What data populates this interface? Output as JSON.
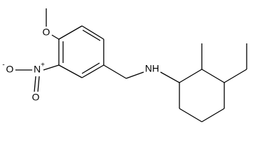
{
  "atoms": [
    {
      "label": "O"
    },
    {
      "label": "N",
      "charge": "+"
    },
    {
      "label": "O",
      "charge": "-"
    },
    {
      "label": "O"
    },
    {
      "label": "NH"
    }
  ]
}
